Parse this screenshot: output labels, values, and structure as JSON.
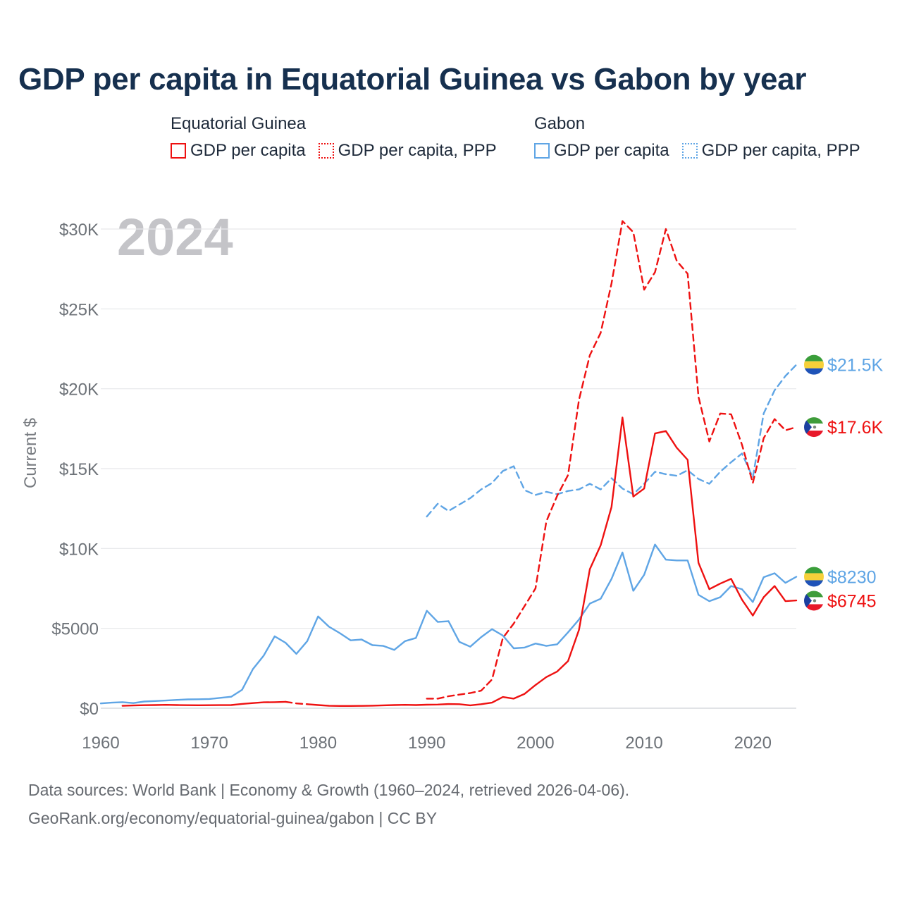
{
  "title": "GDP per capita in Equatorial Guinea vs Gabon by year",
  "legend": {
    "groups": [
      {
        "name": "Equatorial Guinea",
        "color": "#ee1111",
        "items": [
          {
            "label": "GDP per capita",
            "style": "solid"
          },
          {
            "label": "GDP per capita, PPP",
            "style": "dotted"
          }
        ]
      },
      {
        "name": "Gabon",
        "color": "#5fa5e5",
        "items": [
          {
            "label": "GDP per capita",
            "style": "solid"
          },
          {
            "label": "GDP per capita, PPP",
            "style": "dotted"
          }
        ]
      }
    ]
  },
  "footer": {
    "source": "Data sources: World Bank | Economy & Growth (1960–2024, retrieved 2026-04-06).",
    "url": "GeoRank.org/economy/equatorial-guinea/gabon | CC BY"
  },
  "chart_data": {
    "type": "line",
    "title": "GDP per capita in Equatorial Guinea vs Gabon by year",
    "year_label": "2024",
    "ylabel": "Current $",
    "xlabel": "",
    "xlim": [
      1960,
      2024
    ],
    "ylim": [
      0,
      30000
    ],
    "grid": true,
    "x_ticks": [
      {
        "value": 1960,
        "label": "1960"
      },
      {
        "value": 1970,
        "label": "1970"
      },
      {
        "value": 1980,
        "label": "1980"
      },
      {
        "value": 1990,
        "label": "1990"
      },
      {
        "value": 2000,
        "label": "2000"
      },
      {
        "value": 2010,
        "label": "2010"
      },
      {
        "value": 2020,
        "label": "2020"
      }
    ],
    "y_ticks": [
      {
        "value": 0,
        "label": "$0"
      },
      {
        "value": 5000,
        "label": "$5000"
      },
      {
        "value": 10000,
        "label": "$10K"
      },
      {
        "value": 15000,
        "label": "$15K"
      },
      {
        "value": 20000,
        "label": "$20K"
      },
      {
        "value": 25000,
        "label": "$25K"
      },
      {
        "value": 30000,
        "label": "$30K"
      }
    ],
    "series": [
      {
        "name": "Gabon GDP per capita, PPP",
        "country": "Gabon",
        "metric": "GDP per capita, PPP",
        "color": "#5fa5e5",
        "dash": true,
        "flag": "gabon",
        "end_label": "$21.5K",
        "points": [
          [
            1990,
            12000
          ],
          [
            1991,
            12800
          ],
          [
            1992,
            12350
          ],
          [
            1993,
            12750
          ],
          [
            1994,
            13150
          ],
          [
            1995,
            13700
          ],
          [
            1996,
            14100
          ],
          [
            1997,
            14850
          ],
          [
            1998,
            15150
          ],
          [
            1999,
            13650
          ],
          [
            2000,
            13350
          ],
          [
            2001,
            13550
          ],
          [
            2002,
            13400
          ],
          [
            2003,
            13600
          ],
          [
            2004,
            13700
          ],
          [
            2005,
            14050
          ],
          [
            2006,
            13700
          ],
          [
            2007,
            14400
          ],
          [
            2008,
            13750
          ],
          [
            2009,
            13400
          ],
          [
            2010,
            14050
          ],
          [
            2011,
            14800
          ],
          [
            2012,
            14650
          ],
          [
            2013,
            14550
          ],
          [
            2014,
            14900
          ],
          [
            2015,
            14350
          ],
          [
            2016,
            14050
          ],
          [
            2017,
            14800
          ],
          [
            2018,
            15400
          ],
          [
            2019,
            15950
          ],
          [
            2020,
            14450
          ],
          [
            2021,
            18450
          ],
          [
            2022,
            19900
          ],
          [
            2023,
            20800
          ],
          [
            2024,
            21500
          ]
        ]
      },
      {
        "name": "Equatorial Guinea GDP per capita, PPP",
        "country": "Equatorial Guinea",
        "metric": "GDP per capita, PPP",
        "color": "#ee1111",
        "dash": true,
        "flag": "equatorial-guinea",
        "end_label": "$17.6K",
        "points": [
          [
            1990,
            600
          ],
          [
            1991,
            600
          ],
          [
            1992,
            750
          ],
          [
            1993,
            850
          ],
          [
            1994,
            950
          ],
          [
            1995,
            1100
          ],
          [
            1996,
            1800
          ],
          [
            1997,
            4400
          ],
          [
            1998,
            5300
          ],
          [
            1999,
            6400
          ],
          [
            2000,
            7500
          ],
          [
            2001,
            11700
          ],
          [
            2002,
            13300
          ],
          [
            2003,
            14600
          ],
          [
            2004,
            19300
          ],
          [
            2005,
            22100
          ],
          [
            2006,
            23500
          ],
          [
            2007,
            26600
          ],
          [
            2008,
            30500
          ],
          [
            2009,
            29800
          ],
          [
            2010,
            26200
          ],
          [
            2011,
            27300
          ],
          [
            2012,
            30000
          ],
          [
            2013,
            28000
          ],
          [
            2014,
            27200
          ],
          [
            2015,
            19500
          ],
          [
            2016,
            16700
          ],
          [
            2017,
            18450
          ],
          [
            2018,
            18400
          ],
          [
            2019,
            16500
          ],
          [
            2020,
            14100
          ],
          [
            2021,
            16900
          ],
          [
            2022,
            18100
          ],
          [
            2023,
            17400
          ],
          [
            2024,
            17600
          ]
        ]
      },
      {
        "name": "Gabon GDP per capita",
        "country": "Gabon",
        "metric": "GDP per capita",
        "color": "#5fa5e5",
        "dash": false,
        "flag": "gabon",
        "end_label": "$8230",
        "points": [
          [
            1960,
            300
          ],
          [
            1961,
            350
          ],
          [
            1962,
            380
          ],
          [
            1963,
            320
          ],
          [
            1964,
            420
          ],
          [
            1965,
            450
          ],
          [
            1966,
            480
          ],
          [
            1967,
            520
          ],
          [
            1968,
            550
          ],
          [
            1969,
            560
          ],
          [
            1970,
            580
          ],
          [
            1971,
            650
          ],
          [
            1972,
            720
          ],
          [
            1973,
            1150
          ],
          [
            1974,
            2450
          ],
          [
            1975,
            3300
          ],
          [
            1976,
            4500
          ],
          [
            1977,
            4100
          ],
          [
            1978,
            3400
          ],
          [
            1979,
            4200
          ],
          [
            1980,
            5750
          ],
          [
            1981,
            5100
          ],
          [
            1982,
            4700
          ],
          [
            1983,
            4250
          ],
          [
            1984,
            4300
          ],
          [
            1985,
            3950
          ],
          [
            1986,
            3900
          ],
          [
            1987,
            3650
          ],
          [
            1988,
            4200
          ],
          [
            1989,
            4400
          ],
          [
            1990,
            6100
          ],
          [
            1991,
            5400
          ],
          [
            1992,
            5450
          ],
          [
            1993,
            4150
          ],
          [
            1994,
            3850
          ],
          [
            1995,
            4450
          ],
          [
            1996,
            4950
          ],
          [
            1997,
            4550
          ],
          [
            1998,
            3750
          ],
          [
            1999,
            3800
          ],
          [
            2000,
            4050
          ],
          [
            2001,
            3900
          ],
          [
            2002,
            4000
          ],
          [
            2003,
            4750
          ],
          [
            2004,
            5550
          ],
          [
            2005,
            6550
          ],
          [
            2006,
            6850
          ],
          [
            2007,
            8100
          ],
          [
            2008,
            9750
          ],
          [
            2009,
            7350
          ],
          [
            2010,
            8350
          ],
          [
            2011,
            10250
          ],
          [
            2012,
            9300
          ],
          [
            2013,
            9250
          ],
          [
            2014,
            9250
          ],
          [
            2015,
            7100
          ],
          [
            2016,
            6700
          ],
          [
            2017,
            6950
          ],
          [
            2018,
            7650
          ],
          [
            2019,
            7450
          ],
          [
            2020,
            6650
          ],
          [
            2021,
            8200
          ],
          [
            2022,
            8450
          ],
          [
            2023,
            7850
          ],
          [
            2024,
            8230
          ]
        ]
      },
      {
        "name": "Equatorial Guinea GDP per capita",
        "country": "Equatorial Guinea",
        "metric": "GDP per capita",
        "color": "#ee1111",
        "dash": false,
        "flag": "equatorial-guinea",
        "end_label": "$6745",
        "gap_dashed": [
          [
            1977,
            400
          ],
          [
            1978,
            300
          ],
          [
            1979,
            250
          ]
        ],
        "points_segments": [
          [
            [
              1962,
              150
            ],
            [
              1963,
              170
            ],
            [
              1964,
              190
            ],
            [
              1965,
              200
            ],
            [
              1966,
              210
            ],
            [
              1967,
              200
            ],
            [
              1968,
              190
            ],
            [
              1969,
              185
            ],
            [
              1970,
              190
            ],
            [
              1971,
              195
            ],
            [
              1972,
              200
            ],
            [
              1973,
              270
            ],
            [
              1974,
              320
            ],
            [
              1975,
              370
            ],
            [
              1976,
              380
            ],
            [
              1977,
              400
            ]
          ],
          [
            [
              1979,
              250
            ],
            [
              1980,
              200
            ],
            [
              1981,
              150
            ],
            [
              1982,
              140
            ],
            [
              1983,
              140
            ],
            [
              1984,
              145
            ],
            [
              1985,
              160
            ],
            [
              1986,
              180
            ],
            [
              1987,
              200
            ],
            [
              1988,
              210
            ],
            [
              1989,
              200
            ],
            [
              1990,
              220
            ],
            [
              1991,
              230
            ],
            [
              1992,
              260
            ],
            [
              1993,
              250
            ],
            [
              1994,
              180
            ],
            [
              1995,
              250
            ],
            [
              1996,
              350
            ],
            [
              1997,
              700
            ],
            [
              1998,
              600
            ],
            [
              1999,
              900
            ],
            [
              2000,
              1450
            ],
            [
              2001,
              1950
            ],
            [
              2002,
              2300
            ],
            [
              2003,
              2950
            ],
            [
              2004,
              4900
            ],
            [
              2005,
              8700
            ],
            [
              2006,
              10200
            ],
            [
              2007,
              12600
            ],
            [
              2008,
              18200
            ],
            [
              2009,
              13250
            ],
            [
              2010,
              13750
            ],
            [
              2011,
              17200
            ],
            [
              2012,
              17350
            ],
            [
              2013,
              16300
            ],
            [
              2014,
              15550
            ],
            [
              2015,
              9100
            ],
            [
              2016,
              7450
            ],
            [
              2017,
              7800
            ],
            [
              2018,
              8100
            ],
            [
              2019,
              6800
            ],
            [
              2020,
              5800
            ],
            [
              2021,
              6950
            ],
            [
              2022,
              7650
            ],
            [
              2023,
              6700
            ],
            [
              2024,
              6745
            ]
          ]
        ]
      }
    ]
  }
}
